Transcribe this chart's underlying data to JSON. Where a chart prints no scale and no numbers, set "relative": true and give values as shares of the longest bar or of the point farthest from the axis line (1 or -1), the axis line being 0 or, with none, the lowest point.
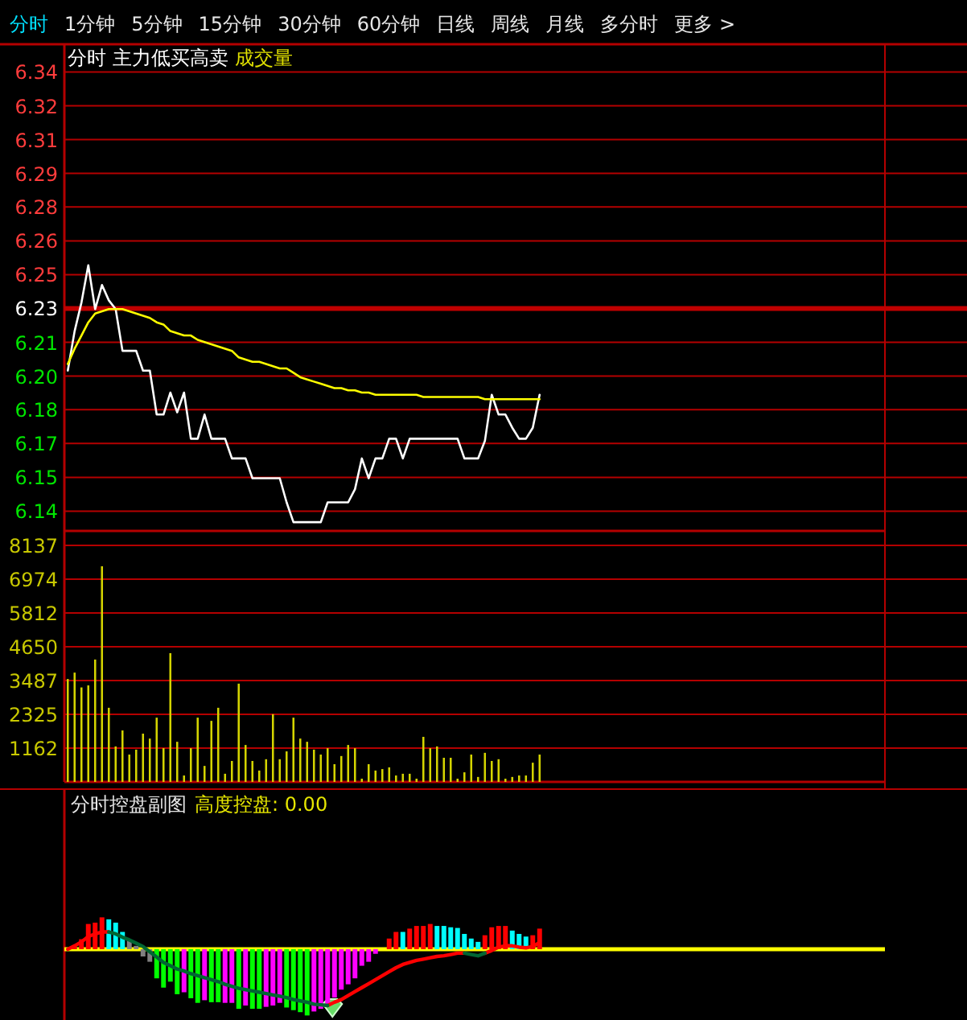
{
  "chart_data": [
    {
      "type": "line",
      "title": "分时 主力低买高卖",
      "annotations": [
        "分时",
        "1分钟",
        "5分钟",
        "15分钟",
        "30分钟",
        "60分钟",
        "日线",
        "周线",
        "月线",
        "多分时",
        "更多 >"
      ],
      "categories": [
        null,
        null,
        null,
        null,
        null,
        null,
        null,
        null,
        null,
        null,
        null,
        null,
        null,
        null,
        null,
        null,
        null,
        null,
        null,
        null,
        null,
        null,
        null,
        null,
        null,
        null,
        null,
        null,
        null,
        null,
        null,
        null,
        null,
        null,
        null,
        null,
        null,
        null,
        null,
        null,
        null,
        null,
        null,
        null,
        null,
        null,
        null,
        null,
        null,
        null,
        null,
        null,
        null,
        null,
        null,
        null,
        null,
        null,
        null,
        null,
        null,
        null,
        null,
        null,
        null,
        null,
        null,
        null,
        null,
        null,
        null,
        null,
        null,
        null,
        null,
        null,
        null,
        null,
        null,
        null,
        null,
        null,
        null,
        null,
        null,
        null,
        null,
        null,
        null,
        null,
        null,
        null,
        null,
        null,
        null,
        null,
        null,
        null,
        null,
        null,
        null,
        null,
        null,
        null,
        null,
        null,
        null,
        null,
        null,
        null,
        null,
        null,
        null,
        null,
        null,
        null,
        null,
        null,
        null,
        null
      ],
      "ylim": [
        6.1285,
        6.3505
      ],
      "yticks": [
        {
          "value": 6.3375,
          "label": "6.34"
        },
        {
          "value": 6.3221,
          "label": "6.32"
        },
        {
          "value": 6.3067,
          "label": "6.31"
        },
        {
          "value": 6.2913,
          "label": "6.29"
        },
        {
          "value": 6.276,
          "label": "6.28"
        },
        {
          "value": 6.2606,
          "label": "6.26"
        },
        {
          "value": 6.2452,
          "label": "6.25"
        },
        {
          "value": 6.2298,
          "label": "6.23"
        },
        {
          "value": 6.2144,
          "label": "6.21"
        },
        {
          "value": 6.199,
          "label": "6.20"
        },
        {
          "value": 6.1837,
          "label": "6.18"
        },
        {
          "value": 6.1683,
          "label": "6.17"
        },
        {
          "value": 6.1529,
          "label": "6.15"
        },
        {
          "value": 6.1375,
          "label": "6.14"
        }
      ],
      "tick_labels": "y",
      "grid": "y",
      "ref_lines": [
        {
          "axis": "y",
          "value": 6.2298,
          "color": "#c00000"
        }
      ],
      "series": [
        {
          "color": "#ffffff",
          "values": [
            6.2015,
            6.2195,
            6.2325,
            6.2495,
            6.2295,
            6.2405,
            6.2335,
            6.2295,
            6.2105,
            6.2105,
            6.2105,
            6.2015,
            6.2015,
            6.1815,
            6.1815,
            6.1915,
            6.1825,
            6.1915,
            6.1705,
            6.1705,
            6.1815,
            6.1705,
            6.1705,
            6.1705,
            6.1615,
            6.1615,
            6.1615,
            6.1525,
            6.1525,
            6.1525,
            6.1525,
            6.1525,
            6.1415,
            6.1325,
            6.1325,
            6.1325,
            6.1325,
            6.1325,
            6.1415,
            6.1415,
            6.1415,
            6.1415,
            6.1475,
            6.1615,
            6.1525,
            6.1615,
            6.1615,
            6.1705,
            6.1705,
            6.1615,
            6.1705,
            6.1705,
            6.1705,
            6.1705,
            6.1705,
            6.1705,
            6.1705,
            6.1705,
            6.1615,
            6.1615,
            6.1615,
            6.1695,
            6.1905,
            6.1815,
            6.1815,
            6.1755,
            6.1705,
            6.1705,
            6.1755,
            6.1905,
            null,
            null,
            null,
            null,
            null,
            null,
            null,
            null,
            null,
            null,
            null,
            null,
            null,
            null,
            null,
            null,
            null,
            null,
            null,
            null,
            null,
            null,
            null,
            null,
            null,
            null,
            null,
            null,
            null,
            null,
            null,
            null,
            null,
            null,
            null,
            null,
            null,
            null,
            null,
            null,
            null,
            null,
            null,
            null,
            null,
            null,
            null,
            null,
            null,
            null
          ]
        },
        {
          "color": "#ffff00",
          "values": [
            6.2045,
            6.2115,
            6.2175,
            6.2235,
            6.2275,
            6.2285,
            6.2295,
            6.2295,
            6.2295,
            6.2285,
            6.2275,
            6.2265,
            6.2255,
            6.2235,
            6.2225,
            6.2195,
            6.2185,
            6.2175,
            6.2175,
            6.2155,
            6.2145,
            6.2135,
            6.2125,
            6.2115,
            6.2105,
            6.2075,
            6.2065,
            6.2055,
            6.2055,
            6.2045,
            6.2035,
            6.2025,
            6.2025,
            6.2005,
            6.1985,
            6.1975,
            6.1965,
            6.1955,
            6.1945,
            6.1935,
            6.1935,
            6.1925,
            6.1925,
            6.1915,
            6.1915,
            6.1905,
            6.1905,
            6.1905,
            6.1905,
            6.1905,
            6.1905,
            6.1905,
            6.1895,
            6.1895,
            6.1895,
            6.1895,
            6.1895,
            6.1895,
            6.1895,
            6.1895,
            6.1895,
            6.1885,
            6.1885,
            6.1885,
            6.1885,
            6.1885,
            6.1885,
            6.1885,
            6.1885,
            6.1885,
            null,
            null,
            null,
            null,
            null,
            null,
            null,
            null,
            null,
            null,
            null,
            null,
            null,
            null,
            null,
            null,
            null,
            null,
            null,
            null,
            null,
            null,
            null,
            null,
            null,
            null,
            null,
            null,
            null,
            null,
            null,
            null,
            null,
            null,
            null,
            null,
            null,
            null,
            null,
            null,
            null,
            null,
            null,
            null,
            null,
            null,
            null,
            null,
            null,
            null
          ]
        }
      ]
    },
    {
      "type": "bar",
      "title": "成交量",
      "categories": [
        null,
        null,
        null,
        null,
        null,
        null,
        null,
        null,
        null,
        null,
        null,
        null,
        null,
        null,
        null,
        null,
        null,
        null,
        null,
        null,
        null,
        null,
        null,
        null,
        null,
        null,
        null,
        null,
        null,
        null,
        null,
        null,
        null,
        null,
        null,
        null,
        null,
        null,
        null,
        null,
        null,
        null,
        null,
        null,
        null,
        null,
        null,
        null,
        null,
        null,
        null,
        null,
        null,
        null,
        null,
        null,
        null,
        null,
        null,
        null,
        null,
        null,
        null,
        null,
        null,
        null,
        null,
        null,
        null,
        null,
        null,
        null,
        null,
        null,
        null,
        null,
        null,
        null,
        null,
        null,
        null,
        null,
        null,
        null,
        null,
        null,
        null,
        null,
        null,
        null,
        null,
        null,
        null,
        null,
        null,
        null,
        null,
        null,
        null,
        null,
        null,
        null,
        null,
        null,
        null,
        null,
        null,
        null,
        null,
        null,
        null,
        null,
        null,
        null,
        null,
        null,
        null,
        null,
        null,
        null
      ],
      "ylim": [
        0,
        8137
      ],
      "yticks": [
        1162,
        2325,
        3487,
        4650,
        5812,
        6974,
        8137
      ],
      "tick_labels": "y",
      "grid": "y",
      "series": [
        {
          "color": "#d4d400",
          "values": [
            3540,
            3760,
            3250,
            3320,
            4210,
            7420,
            2550,
            1220,
            1770,
            940,
            1110,
            1660,
            1490,
            2210,
            1160,
            4430,
            1380,
            220,
            1160,
            2210,
            550,
            2100,
            2550,
            280,
            720,
            3380,
            1270,
            720,
            390,
            780,
            2330,
            780,
            1050,
            2210,
            1490,
            1380,
            1110,
            940,
            1160,
            610,
            890,
            1270,
            1160,
            110,
            610,
            390,
            440,
            500,
            220,
            280,
            280,
            110,
            1550,
            1160,
            1220,
            830,
            830,
            110,
            330,
            940,
            170,
            1000,
            720,
            780,
            110,
            170,
            220,
            220,
            660,
            940,
            null,
            null,
            null,
            null,
            null,
            null,
            null,
            null,
            null,
            null,
            null,
            null,
            null,
            null,
            null,
            null,
            null,
            null,
            null,
            null,
            null,
            null,
            null,
            null,
            null,
            null,
            null,
            null,
            null,
            null,
            null,
            null,
            null,
            null,
            null,
            null,
            null,
            null,
            null,
            null,
            null,
            null,
            null,
            null,
            null,
            null,
            null,
            null,
            null,
            null
          ]
        }
      ]
    },
    {
      "type": "bar",
      "title": "分时控盘副图",
      "subtitle": "高度控盘: 0.00",
      "relative": true,
      "tick_labels": false,
      "ref_lines": [
        {
          "axis": "y",
          "value": 0,
          "color": "#ffff00"
        }
      ],
      "categories": [
        null,
        null,
        null,
        null,
        null,
        null,
        null,
        null,
        null,
        null,
        null,
        null,
        null,
        null,
        null,
        null,
        null,
        null,
        null,
        null,
        null,
        null,
        null,
        null,
        null,
        null,
        null,
        null,
        null,
        null,
        null,
        null,
        null,
        null,
        null,
        null,
        null,
        null,
        null,
        null,
        null,
        null,
        null,
        null,
        null,
        null,
        null,
        null,
        null,
        null,
        null,
        null,
        null,
        null,
        null,
        null,
        null,
        null,
        null,
        null,
        null,
        null,
        null,
        null,
        null,
        null,
        null,
        null,
        null,
        null,
        null,
        null,
        null,
        null,
        null,
        null,
        null,
        null,
        null,
        null,
        null,
        null,
        null,
        null,
        null,
        null,
        null,
        null,
        null,
        null,
        null,
        null,
        null,
        null,
        null,
        null,
        null,
        null,
        null,
        null,
        null,
        null,
        null,
        null,
        null,
        null,
        null,
        null,
        null,
        null,
        null,
        null,
        null,
        null,
        null,
        null,
        null,
        null,
        null,
        null
      ],
      "series": [
        {
          "type": "bar",
          "values": [
            null,
            0.03,
            0.15,
            0.38,
            0.4,
            0.48,
            0.45,
            0.4,
            0.26,
            0.13,
            0.05,
            -0.11,
            -0.19,
            -0.44,
            -0.58,
            -0.49,
            -0.68,
            -0.65,
            -0.74,
            -0.81,
            -0.77,
            -0.8,
            -0.8,
            -0.81,
            -0.81,
            -0.9,
            -0.85,
            -0.9,
            -0.9,
            -0.87,
            -0.85,
            -0.81,
            -0.88,
            -0.92,
            -0.95,
            -1,
            -0.94,
            -0.9,
            -0.85,
            -0.73,
            -0.61,
            -0.53,
            -0.44,
            -0.25,
            -0.19,
            -0.07,
            null,
            0.16,
            0.26,
            0.26,
            0.31,
            0.35,
            0.35,
            0.38,
            0.35,
            0.35,
            0.33,
            0.32,
            0.23,
            0.16,
            0.11,
            0.21,
            0.33,
            0.35,
            0.35,
            0.28,
            0.23,
            0.19,
            0.21,
            0.31,
            null,
            null,
            null,
            null,
            null,
            null,
            null,
            null,
            null,
            null,
            null,
            null,
            null,
            null,
            null,
            null,
            null,
            null,
            null,
            null,
            null,
            null,
            null,
            null,
            null,
            null,
            null,
            null,
            null,
            null,
            null,
            null,
            null,
            null,
            null,
            null,
            null,
            null,
            null,
            null,
            null,
            null,
            null,
            null,
            null,
            null,
            null,
            null,
            null,
            null
          ],
          "colors": [
            null,
            "#ff0000",
            "#ff0000",
            "#ff0000",
            "#ff0000",
            "#ff0000",
            "#00ffff",
            "#00ffff",
            "#00ffff",
            "#808080",
            "#808080",
            "#808080",
            "#808080",
            "#00ff00",
            "#00ff00",
            "#00ff00",
            "#00ff00",
            "#ff00ff",
            "#00ff00",
            "#00ff00",
            "#ff00ff",
            "#00ff00",
            "#00ff00",
            "#ff00ff",
            "#ff00ff",
            "#00ff00",
            "#ff00ff",
            "#00ff00",
            "#00ff00",
            "#ff00ff",
            "#ff00ff",
            "#ff00ff",
            "#00ff00",
            "#00ff00",
            "#00ff00",
            "#00ff00",
            "#ff00ff",
            "#ff00ff",
            "#ff00ff",
            "#ff00ff",
            "#ff00ff",
            "#ff00ff",
            "#ff00ff",
            "#ff00ff",
            "#ff00ff",
            "#ff00ff",
            null,
            "#ff0000",
            "#ff0000",
            "#00ffff",
            "#ff0000",
            "#ff0000",
            "#ff0000",
            "#ff0000",
            "#00ffff",
            "#00ffff",
            "#00ffff",
            "#00ffff",
            "#00ffff",
            "#00ffff",
            "#00ffff",
            "#ff0000",
            "#ff0000",
            "#ff0000",
            "#ff0000",
            "#00ffff",
            "#00ffff",
            "#00ffff",
            "#ff0000",
            "#ff0000",
            null,
            null,
            null,
            null,
            null,
            null,
            null,
            null,
            null,
            null,
            null,
            null,
            null,
            null,
            null,
            null,
            null,
            null,
            null,
            null,
            null,
            null,
            null,
            null,
            null,
            null,
            null,
            null,
            null,
            null,
            null,
            null,
            null,
            null,
            null,
            null,
            null,
            null,
            null,
            null,
            null,
            null,
            null,
            null,
            null,
            null,
            null,
            null,
            null,
            null
          ]
        },
        {
          "type": "line",
          "color": "#ff0000",
          "values": [
            0,
            0.05,
            0.11,
            0.19,
            0.23,
            0.26,
            0.26,
            null,
            null,
            null,
            null,
            null,
            null,
            null,
            null,
            null,
            null,
            null,
            null,
            null,
            null,
            null,
            null,
            null,
            null,
            null,
            null,
            null,
            null,
            null,
            null,
            null,
            null,
            null,
            null,
            null,
            null,
            null,
            -0.85,
            -0.8,
            -0.76,
            -0.7,
            -0.64,
            -0.58,
            -0.52,
            -0.46,
            -0.4,
            -0.34,
            -0.28,
            -0.23,
            -0.2,
            -0.17,
            -0.15,
            -0.13,
            -0.11,
            -0.1,
            -0.08,
            -0.06,
            -0.06,
            null,
            null,
            -0.06,
            -0.02,
            0.03,
            0.05,
            0.05,
            0.03,
            0.02,
            0.04,
            0.1,
            null,
            null,
            null,
            null,
            null,
            null,
            null,
            null,
            null,
            null,
            null,
            null,
            null,
            null,
            null,
            null,
            null,
            null,
            null,
            null,
            null,
            null,
            null,
            null,
            null,
            null,
            null,
            null,
            null,
            null,
            null,
            null,
            null,
            null,
            null,
            null,
            null,
            null,
            null,
            null,
            null,
            null,
            null,
            null,
            null,
            null,
            null,
            null,
            null,
            null
          ]
        },
        {
          "type": "line",
          "color": "#006633",
          "values": [
            null,
            null,
            null,
            null,
            null,
            null,
            0.26,
            0.23,
            0.18,
            0.14,
            0.09,
            0.04,
            -0.04,
            -0.12,
            -0.2,
            -0.25,
            -0.3,
            -0.33,
            -0.37,
            -0.4,
            -0.43,
            -0.46,
            -0.49,
            -0.53,
            -0.56,
            -0.59,
            -0.61,
            -0.63,
            -0.65,
            -0.67,
            -0.69,
            -0.71,
            -0.73,
            -0.76,
            -0.78,
            -0.8,
            -0.83,
            -0.84,
            -0.85,
            null,
            null,
            null,
            null,
            null,
            null,
            null,
            null,
            null,
            null,
            null,
            null,
            null,
            null,
            null,
            null,
            null,
            null,
            null,
            -0.06,
            -0.08,
            -0.1,
            -0.06,
            null,
            null,
            null,
            null,
            null,
            null,
            null,
            null,
            null,
            null,
            null,
            null,
            null,
            null,
            null,
            null,
            null,
            null,
            null,
            null,
            null,
            null,
            null,
            null,
            null,
            null,
            null,
            null,
            null,
            null,
            null,
            null,
            null,
            null,
            null,
            null,
            null,
            null,
            null,
            null,
            null,
            null,
            null,
            null,
            null,
            null,
            null,
            null,
            null,
            null,
            null,
            null,
            null,
            null,
            null,
            null,
            null,
            null
          ]
        }
      ]
    }
  ]
}
